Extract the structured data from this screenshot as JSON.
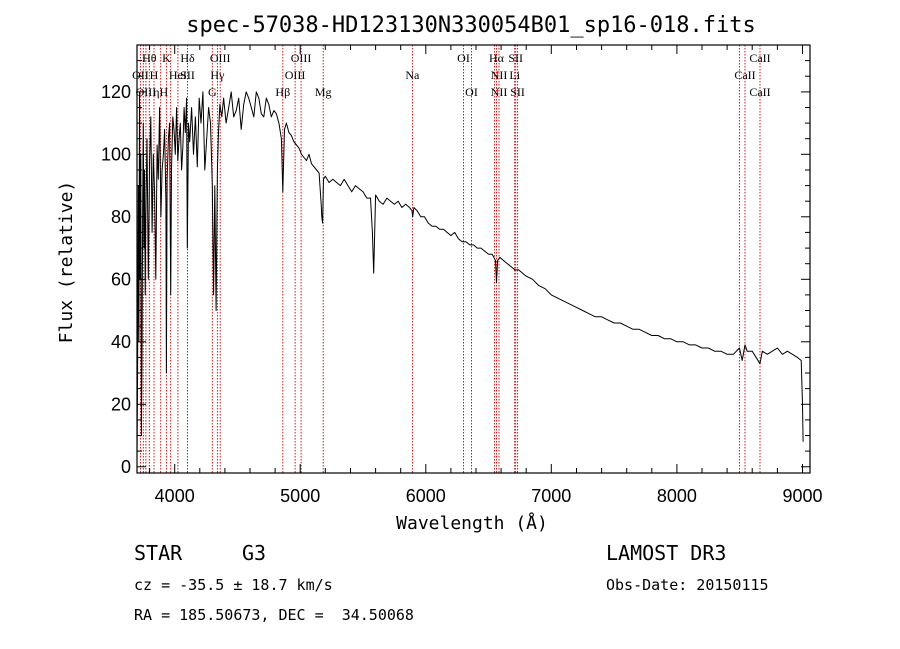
{
  "chart_data": {
    "type": "line",
    "title": "spec-57038-HD123130N330054B01_sp16-018.fits",
    "xlabel": "Wavelength (Å)",
    "ylabel": "Flux (relative)",
    "xlim": [
      3700,
      9060
    ],
    "ylim": [
      -2,
      135
    ],
    "x_ticks": [
      4000,
      5000,
      6000,
      7000,
      8000,
      9000
    ],
    "y_ticks": [
      0,
      20,
      40,
      60,
      80,
      100,
      120
    ],
    "series": [
      {
        "name": "spectrum",
        "x": [
          3700,
          3705,
          3710,
          3715,
          3720,
          3725,
          3730,
          3735,
          3740,
          3745,
          3750,
          3755,
          3760,
          3765,
          3770,
          3780,
          3790,
          3800,
          3810,
          3820,
          3830,
          3840,
          3850,
          3860,
          3870,
          3880,
          3890,
          3900,
          3910,
          3920,
          3930,
          3934,
          3940,
          3950,
          3960,
          3968,
          3975,
          3985,
          3995,
          4005,
          4015,
          4025,
          4035,
          4045,
          4055,
          4065,
          4075,
          4085,
          4095,
          4101,
          4110,
          4120,
          4135,
          4150,
          4165,
          4180,
          4195,
          4210,
          4225,
          4240,
          4255,
          4270,
          4285,
          4300,
          4310,
          4320,
          4330,
          4340,
          4350,
          4360,
          4375,
          4390,
          4410,
          4430,
          4450,
          4470,
          4490,
          4510,
          4530,
          4550,
          4570,
          4590,
          4610,
          4630,
          4650,
          4670,
          4690,
          4710,
          4730,
          4750,
          4770,
          4790,
          4810,
          4830,
          4850,
          4861,
          4875,
          4890,
          4910,
          4930,
          4950,
          4970,
          4990,
          5010,
          5030,
          5050,
          5070,
          5090,
          5110,
          5130,
          5150,
          5167,
          5172,
          5178,
          5185,
          5200,
          5230,
          5260,
          5290,
          5320,
          5350,
          5380,
          5410,
          5440,
          5470,
          5500,
          5530,
          5560,
          5575,
          5585,
          5600,
          5630,
          5660,
          5690,
          5720,
          5750,
          5780,
          5810,
          5840,
          5870,
          5890,
          5896,
          5905,
          5930,
          5960,
          5990,
          6020,
          6050,
          6080,
          6110,
          6140,
          6170,
          6200,
          6230,
          6260,
          6290,
          6320,
          6350,
          6380,
          6410,
          6440,
          6470,
          6500,
          6530,
          6555,
          6563,
          6572,
          6590,
          6620,
          6650,
          6680,
          6710,
          6740,
          6770,
          6800,
          6850,
          6900,
          6950,
          7000,
          7050,
          7100,
          7150,
          7200,
          7250,
          7300,
          7350,
          7400,
          7450,
          7500,
          7550,
          7600,
          7650,
          7700,
          7750,
          7800,
          7850,
          7900,
          7950,
          8000,
          8050,
          8100,
          8150,
          8200,
          8250,
          8300,
          8350,
          8400,
          8450,
          8498,
          8520,
          8542,
          8560,
          8600,
          8662,
          8680,
          8720,
          8760,
          8800,
          8840,
          8880,
          8920,
          8960,
          8990,
          9000,
          9005
        ],
        "values": [
          2,
          30,
          90,
          40,
          120,
          60,
          100,
          10,
          35,
          85,
          110,
          70,
          95,
          55,
          80,
          105,
          60,
          98,
          112,
          75,
          100,
          88,
          60,
          103,
          92,
          115,
          80,
          95,
          100,
          108,
          85,
          30,
          92,
          105,
          110,
          55,
          95,
          112,
          108,
          100,
          115,
          98,
          105,
          110,
          95,
          102,
          115,
          107,
          118,
          70,
          110,
          104,
          115,
          100,
          112,
          96,
          118,
          110,
          120,
          95,
          105,
          115,
          110,
          90,
          55,
          90,
          50,
          95,
          108,
          116,
          112,
          118,
          110,
          115,
          120,
          112,
          114,
          118,
          108,
          116,
          120,
          118,
          115,
          112,
          120,
          118,
          113,
          112,
          118,
          116,
          112,
          114,
          113,
          110,
          105,
          88,
          108,
          110,
          107,
          106,
          104,
          103,
          102,
          100,
          99,
          98,
          100,
          97,
          96,
          95,
          94,
          84,
          80,
          78,
          92,
          93,
          91,
          92,
          91,
          90,
          92,
          90,
          88,
          90,
          89,
          88,
          86,
          86,
          75,
          62,
          87,
          85,
          84,
          86,
          85,
          84,
          85,
          83,
          84,
          83,
          82,
          80,
          83,
          82,
          80,
          80,
          78,
          77,
          77,
          76,
          76,
          75,
          74,
          75,
          73,
          72,
          72,
          71,
          71,
          70,
          70,
          69,
          68,
          68,
          66,
          59,
          66,
          67,
          66,
          65,
          64,
          63,
          63,
          62,
          61,
          60,
          58,
          57,
          55,
          54,
          53,
          52,
          51,
          50,
          49,
          48,
          48,
          47,
          46,
          46,
          45,
          44,
          44,
          43,
          42,
          42,
          41,
          41,
          40,
          40,
          39,
          39,
          38,
          38,
          37,
          37,
          36,
          36,
          38,
          34,
          39,
          37,
          37,
          33,
          37,
          36,
          37,
          38,
          36,
          37,
          36,
          35,
          34,
          20,
          8
        ]
      }
    ],
    "line_markers": {
      "wavelengths": [
        3727,
        3750,
        3771,
        3798,
        3835,
        3889,
        3934,
        3968,
        4026,
        4102,
        4300,
        4340,
        4363,
        4861,
        4959,
        5007,
        5183,
        5893,
        6300,
        6364,
        6548,
        6563,
        6583,
        6708,
        6716,
        6731,
        8498,
        8542,
        8662
      ],
      "labels": [
        {
          "text": "Hθ",
          "wl": 3798,
          "row": 1
        },
        {
          "text": "K",
          "wl": 3934,
          "row": 1
        },
        {
          "text": "Hδ",
          "wl": 4102,
          "row": 1
        },
        {
          "text": "OIII",
          "wl": 4363,
          "row": 1
        },
        {
          "text": "OIII",
          "wl": 5007,
          "row": 1
        },
        {
          "text": "OI",
          "wl": 6300,
          "row": 1
        },
        {
          "text": "Hα",
          "wl": 6563,
          "row": 1
        },
        {
          "text": "SII",
          "wl": 6716,
          "row": 1
        },
        {
          "text": "CaII",
          "wl": 8662,
          "row": 1
        },
        {
          "text": "OII",
          "wl": 3727,
          "row": 2
        },
        {
          "text": "H",
          "wl": 3835,
          "row": 2
        },
        {
          "text": "HeI",
          "wl": 4026,
          "row": 2
        },
        {
          "text": "SII",
          "wl": 4102,
          "row": 2
        },
        {
          "text": "Hγ",
          "wl": 4340,
          "row": 2
        },
        {
          "text": "OIII",
          "wl": 4959,
          "row": 2
        },
        {
          "text": "Na",
          "wl": 5893,
          "row": 2
        },
        {
          "text": "NII",
          "wl": 6583,
          "row": 2
        },
        {
          "text": "Li",
          "wl": 6708,
          "row": 2
        },
        {
          "text": "CaII",
          "wl": 8542,
          "row": 2
        },
        {
          "text": "OIII",
          "wl": 3771,
          "row": 3
        },
        {
          "text": "ηH",
          "wl": 3889,
          "row": 3
        },
        {
          "text": "G",
          "wl": 4300,
          "row": 3
        },
        {
          "text": "Hβ",
          "wl": 4861,
          "row": 3
        },
        {
          "text": "Mg",
          "wl": 5183,
          "row": 3
        },
        {
          "text": "OI",
          "wl": 6364,
          "row": 3
        },
        {
          "text": "NII",
          "wl": 6583,
          "row": 3
        },
        {
          "text": "SII",
          "wl": 6731,
          "row": 3
        },
        {
          "text": "CaII",
          "wl": 8662,
          "row": 3
        }
      ],
      "color": "#cc0000"
    }
  },
  "info": {
    "object_class": "STAR",
    "subclass": "G3",
    "survey": "LAMOST DR3",
    "cz": "cz = -35.5 ± 18.7 km/s",
    "obs_date": "Obs-Date: 20150115",
    "coords": "RA = 185.50673, DEC =  34.50068"
  },
  "colors": {
    "spectrum": "#000000",
    "markers": "#cc0000",
    "axes": "#000000"
  }
}
